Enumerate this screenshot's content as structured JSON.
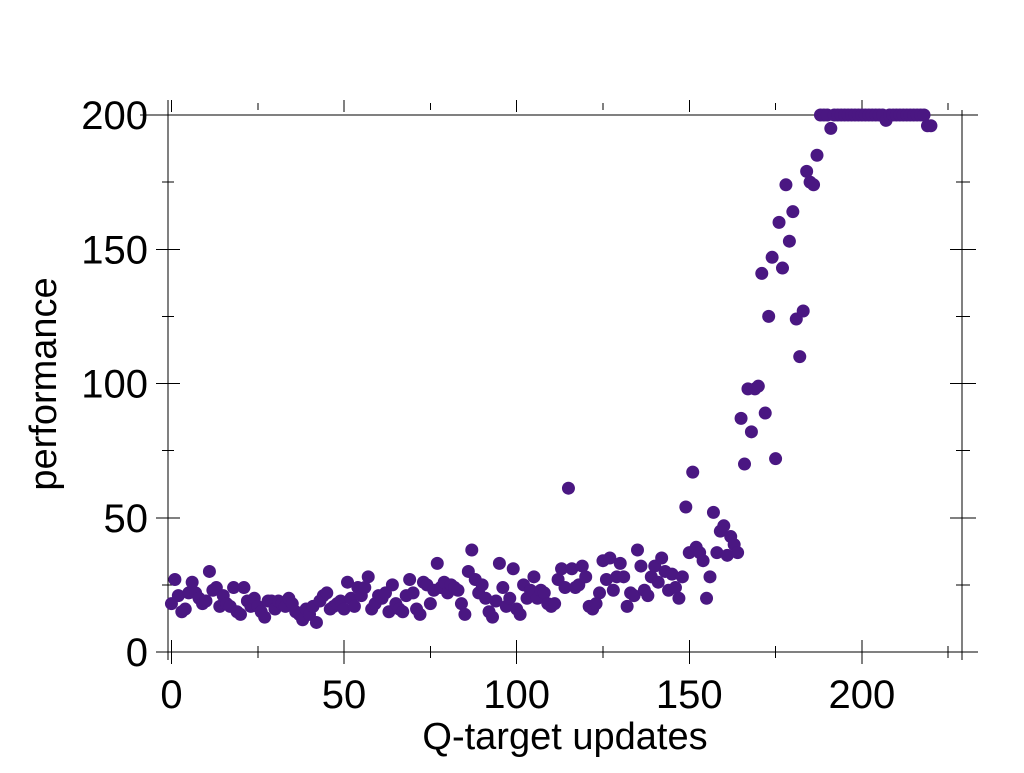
{
  "chart_data": {
    "type": "scatter",
    "xlabel": "Q-target updates",
    "ylabel": "performance",
    "xlim": [
      -1,
      229
    ],
    "ylim": [
      0,
      200
    ],
    "x_ticks": [
      0,
      50,
      100,
      150,
      200
    ],
    "y_ticks": [
      0,
      50,
      100,
      150,
      200
    ],
    "x_tick_labels": [
      "0",
      "50",
      "100",
      "150",
      "200"
    ],
    "y_tick_labels": [
      "0",
      "50",
      "100",
      "150",
      "200"
    ],
    "x_minor_ticks": [
      25,
      75,
      125,
      175,
      225
    ],
    "y_minor_ticks": [
      25,
      75,
      125,
      175
    ],
    "grid": false,
    "legend": "none",
    "marker_color": "#4a1782",
    "series": [
      {
        "x": [
          0,
          1,
          2,
          3,
          4,
          5,
          6,
          7,
          8,
          9,
          10,
          11,
          12,
          13,
          14,
          15,
          16,
          17,
          18,
          19,
          20,
          21,
          22,
          23,
          24,
          25,
          26,
          27,
          28,
          29,
          30,
          31,
          32,
          33,
          34,
          35,
          36,
          37,
          38,
          39,
          40,
          41,
          42,
          43,
          44,
          45,
          46,
          47,
          48,
          49,
          50,
          51,
          52,
          53,
          54,
          55,
          56,
          57,
          58,
          59,
          60,
          61,
          62,
          63,
          64,
          65,
          66,
          67,
          68,
          69,
          70,
          71,
          72,
          73,
          74,
          75,
          76,
          77,
          78,
          79,
          80,
          81,
          82,
          83,
          84,
          85,
          86,
          87,
          88,
          89,
          90,
          91,
          92,
          93,
          94,
          95,
          96,
          97,
          98,
          99,
          100,
          101,
          102,
          103,
          104,
          105,
          106,
          107,
          108,
          109,
          110,
          111,
          112,
          113,
          114,
          115,
          116,
          117,
          118,
          119,
          120,
          121,
          122,
          123,
          124,
          125,
          126,
          127,
          128,
          129,
          130,
          131,
          132,
          133,
          134,
          135,
          136,
          137,
          138,
          139,
          140,
          141,
          142,
          143,
          144,
          145,
          146,
          147,
          148,
          149,
          150,
          151,
          152,
          153,
          154,
          155,
          156,
          157,
          158,
          159,
          160,
          161,
          162,
          163,
          164,
          165,
          166,
          167,
          168,
          169,
          170,
          171,
          172,
          173,
          174,
          175,
          176,
          177,
          178,
          179,
          180,
          181,
          182,
          183,
          184,
          185,
          186,
          187,
          188,
          189,
          190,
          191,
          192,
          193,
          194,
          195,
          196,
          197,
          198,
          199,
          200,
          201,
          202,
          203,
          204,
          205,
          206,
          207,
          208,
          209,
          210,
          211,
          212,
          213,
          214,
          215,
          216,
          217,
          218,
          219,
          220
        ],
        "y": [
          18,
          27,
          21,
          15,
          16,
          22,
          26,
          22,
          20,
          18,
          19,
          30,
          23,
          24,
          17,
          21,
          18,
          17,
          24,
          15,
          14,
          24,
          19,
          17,
          20,
          17,
          15,
          13,
          19,
          19,
          16,
          19,
          18,
          17,
          20,
          18,
          15,
          14,
          12,
          16,
          14,
          17,
          11,
          19,
          21,
          22,
          16,
          17,
          18,
          19,
          16,
          26,
          20,
          17,
          24,
          21,
          24,
          28,
          16,
          18,
          21,
          20,
          22,
          15,
          25,
          18,
          16,
          15,
          21,
          27,
          22,
          16,
          14,
          26,
          25,
          18,
          23,
          33,
          24,
          26,
          22,
          25,
          24,
          23,
          18,
          14,
          30,
          38,
          27,
          22,
          25,
          20,
          15,
          13,
          19,
          33,
          24,
          17,
          20,
          31,
          16,
          14,
          25,
          20,
          23,
          28,
          20,
          23,
          22,
          18,
          17,
          18,
          27,
          31,
          24,
          61,
          31,
          24,
          25,
          32,
          28,
          17,
          16,
          18,
          22,
          34,
          27,
          35,
          23,
          28,
          33,
          28,
          17,
          22,
          21,
          38,
          32,
          23,
          21,
          28,
          32,
          26,
          35,
          30,
          23,
          29,
          24,
          20,
          28,
          54,
          37,
          67,
          39,
          37,
          34,
          20,
          28,
          52,
          37,
          45,
          47,
          36,
          43,
          40,
          37,
          87,
          70,
          98,
          82,
          98,
          99,
          141,
          89,
          125,
          147,
          72,
          160,
          143,
          174,
          153,
          164,
          124,
          110,
          127,
          179,
          175,
          174,
          185,
          200,
          200,
          200,
          195,
          200,
          200,
          200,
          200,
          200,
          200,
          200,
          200,
          200,
          200,
          200,
          200,
          200,
          200,
          200,
          198,
          200,
          200,
          200,
          200,
          200,
          200,
          200,
          200,
          200,
          200,
          200,
          196,
          196
        ]
      }
    ]
  }
}
